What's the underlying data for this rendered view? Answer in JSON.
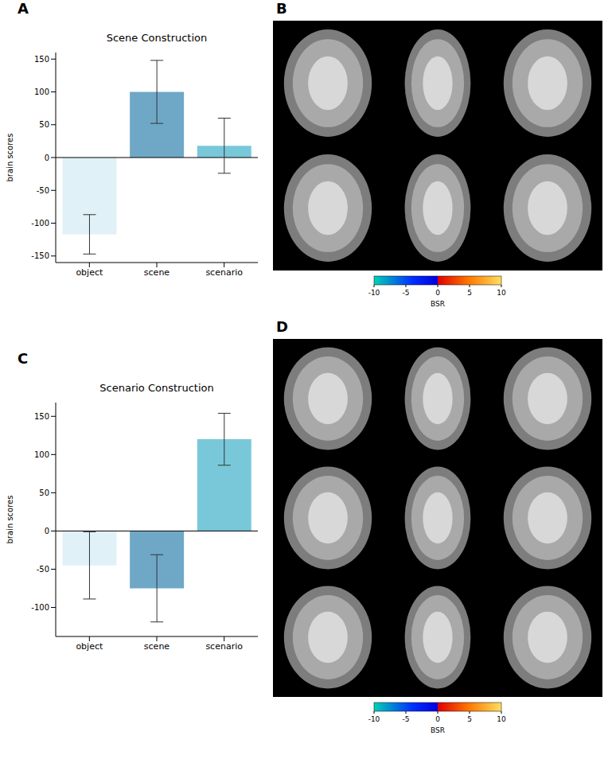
{
  "chart_data": [
    {
      "type": "bar",
      "panel_label": "A",
      "title": "Scene Construction",
      "ylabel": "brain scores",
      "categories": [
        "object",
        "scene",
        "scenario"
      ],
      "values": [
        -117,
        100,
        18
      ],
      "errors": [
        30,
        48,
        42
      ],
      "colors": [
        "#e0f1f7",
        "#6fa8c7",
        "#79c8d9"
      ],
      "ylim": [
        -160,
        160
      ],
      "yticks": [
        -150,
        -100,
        -50,
        0,
        50,
        100,
        150
      ]
    },
    {
      "type": "bar",
      "panel_label": "C",
      "title": "Scenario Construction",
      "ylabel": "brain scores",
      "categories": [
        "object",
        "scene",
        "scenario"
      ],
      "values": [
        -45,
        -75,
        120
      ],
      "errors": [
        44,
        44,
        34
      ],
      "colors": [
        "#e0f1f7",
        "#6fa8c7",
        "#79c8d9"
      ],
      "ylim": [
        -138,
        168
      ],
      "yticks": [
        -100,
        -50,
        0,
        50,
        100,
        150
      ]
    }
  ],
  "brain_maps": [
    {
      "panel_label": "B",
      "colorbar": {
        "label": "BSR",
        "range": [
          -10,
          10
        ],
        "ticks": [
          -10,
          -5,
          0,
          5,
          10
        ]
      }
    },
    {
      "panel_label": "D",
      "colorbar": {
        "label": "BSR",
        "range": [
          -10,
          10
        ],
        "ticks": [
          -10,
          -5,
          0,
          5,
          10
        ]
      }
    }
  ]
}
